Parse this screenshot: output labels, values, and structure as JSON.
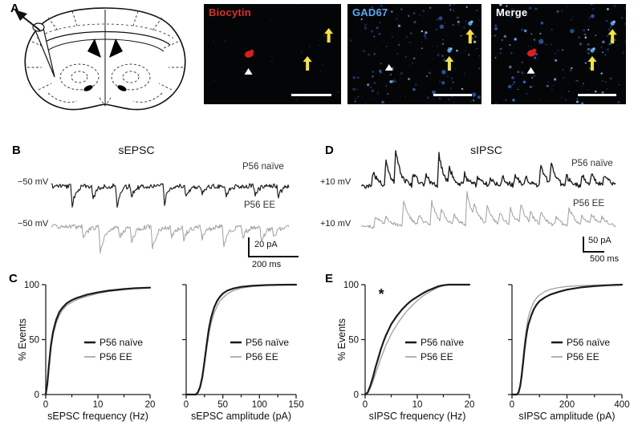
{
  "panels": {
    "a": {
      "label": "A",
      "micrographs": [
        {
          "title": "Biocytin",
          "title_color": "#d93025",
          "speckle": "dim",
          "markers": {
            "red_cell": [
              0.33,
              0.5
            ],
            "white_arrowhead": [
              0.325,
              0.64
            ],
            "yellow_arrows": [
              [
                0.91,
                0.24,
                false
              ],
              [
                0.755,
                0.52,
                false
              ]
            ]
          }
        },
        {
          "title": "GAD67",
          "title_color": "#57aaf0",
          "speckle": "blue",
          "markers": {
            "white_arrowhead": [
              0.31,
              0.6
            ],
            "yellow_arrows": [
              [
                0.915,
                0.25,
                true
              ],
              [
                0.76,
                0.52,
                true
              ]
            ]
          }
        },
        {
          "title": "Merge",
          "title_color": "#ffffff",
          "speckle": "blue",
          "markers": {
            "red_cell": [
              0.3,
              0.49
            ],
            "white_arrowhead": [
              0.295,
              0.63
            ],
            "yellow_arrows": [
              [
                0.9,
                0.25,
                true
              ],
              [
                0.75,
                0.52,
                true
              ]
            ]
          }
        }
      ]
    },
    "b": {
      "label": "B",
      "title": "sEPSC",
      "traces": [
        {
          "hold": "−50 mV",
          "name": "P56 naïve"
        },
        {
          "hold": "−50 mV",
          "name": "P56 EE"
        }
      ],
      "scale_v": "20 pA",
      "scale_h": "200 ms",
      "events": [
        [
          [
            0.08,
            26
          ],
          [
            0.17,
            18
          ],
          [
            0.27,
            25
          ],
          [
            0.33,
            12
          ],
          [
            0.47,
            22
          ],
          [
            0.56,
            14
          ],
          [
            0.63,
            10
          ],
          [
            0.73,
            13
          ],
          [
            0.85,
            12
          ],
          [
            0.95,
            14
          ]
        ],
        [
          [
            0.13,
            16
          ],
          [
            0.2,
            34
          ],
          [
            0.28,
            14
          ],
          [
            0.33,
            18
          ],
          [
            0.42,
            28
          ],
          [
            0.5,
            12
          ],
          [
            0.55,
            16
          ],
          [
            0.63,
            14
          ],
          [
            0.72,
            26
          ],
          [
            0.8,
            12
          ],
          [
            0.88,
            20
          ],
          [
            0.93,
            12
          ]
        ]
      ]
    },
    "c": {
      "label": "C"
    },
    "d": {
      "label": "D",
      "title": "sIPSC",
      "traces": [
        {
          "hold": "+10 mV",
          "name": "P56 naïve"
        },
        {
          "hold": "+10 mV",
          "name": "P56 EE"
        }
      ],
      "scale_v": "50 pA",
      "scale_h": "500 ms",
      "events": [
        [
          [
            0.04,
            18
          ],
          [
            0.09,
            30
          ],
          [
            0.13,
            42
          ],
          [
            0.2,
            16
          ],
          [
            0.25,
            12
          ],
          [
            0.3,
            38
          ],
          [
            0.34,
            20
          ],
          [
            0.4,
            14
          ],
          [
            0.45,
            12
          ],
          [
            0.5,
            10
          ],
          [
            0.55,
            12
          ],
          [
            0.6,
            14
          ],
          [
            0.64,
            10
          ],
          [
            0.7,
            28
          ],
          [
            0.74,
            24
          ],
          [
            0.8,
            12
          ],
          [
            0.86,
            14
          ],
          [
            0.9,
            12
          ],
          [
            0.95,
            14
          ]
        ],
        [
          [
            0.05,
            14
          ],
          [
            0.09,
            10
          ],
          [
            0.16,
            32
          ],
          [
            0.22,
            12
          ],
          [
            0.27,
            30
          ],
          [
            0.31,
            16
          ],
          [
            0.36,
            12
          ],
          [
            0.41,
            40
          ],
          [
            0.44,
            16
          ],
          [
            0.49,
            24
          ],
          [
            0.54,
            14
          ],
          [
            0.58,
            20
          ],
          [
            0.62,
            24
          ],
          [
            0.66,
            12
          ],
          [
            0.7,
            16
          ],
          [
            0.76,
            10
          ],
          [
            0.81,
            22
          ],
          [
            0.86,
            12
          ],
          [
            0.9,
            14
          ],
          [
            0.94,
            10
          ]
        ]
      ]
    },
    "e": {
      "label": "E"
    }
  },
  "colors": {
    "naive": "#1b1b1b",
    "ee": "#9e9e9e",
    "trace_gray": "#a3a3a3",
    "yellow_arrow": "#f6e23c",
    "red_cell": "#dd1f1f",
    "micro_bg": "#040507"
  },
  "chart_data": [
    {
      "id": "sepsc_freq",
      "type": "line",
      "xlabel": "sEPSC frequency (Hz)",
      "ylabel": "% Events",
      "xlim": [
        0,
        20
      ],
      "ylim": [
        0,
        100
      ],
      "xticks": [
        0,
        10,
        20
      ],
      "xminor": [
        5,
        15
      ],
      "yticks": [
        0,
        50,
        100
      ],
      "ytick_labels": true,
      "legend": true,
      "legend_x": 85,
      "series": [
        {
          "name": "P56 naïve",
          "points": [
            [
              0,
              0
            ],
            [
              0.3,
              10
            ],
            [
              0.6,
              26
            ],
            [
              1,
              45
            ],
            [
              1.4,
              57
            ],
            [
              2,
              68
            ],
            [
              2.6,
              75
            ],
            [
              3.2,
              79
            ],
            [
              4,
              83
            ],
            [
              5,
              86
            ],
            [
              6,
              88
            ],
            [
              8,
              91
            ],
            [
              10,
              93
            ],
            [
              12,
              94.5
            ],
            [
              15,
              96
            ],
            [
              17,
              96.7
            ],
            [
              20,
              97.3
            ]
          ]
        },
        {
          "name": "P56 EE",
          "points": [
            [
              0,
              0
            ],
            [
              0.3,
              8
            ],
            [
              0.6,
              23
            ],
            [
              1,
              42
            ],
            [
              1.4,
              54
            ],
            [
              2,
              65
            ],
            [
              2.6,
              72
            ],
            [
              3.2,
              77
            ],
            [
              4,
              81
            ],
            [
              5,
              84
            ],
            [
              6,
              86.5
            ],
            [
              8,
              89.5
            ],
            [
              10,
              92
            ],
            [
              12,
              93.8
            ],
            [
              15,
              95.5
            ],
            [
              17,
              96.4
            ],
            [
              20,
              97.2
            ]
          ]
        }
      ]
    },
    {
      "id": "sepsc_amp",
      "type": "line",
      "xlabel": "sEPSC amplitude (pA)",
      "ylabel": "",
      "xlim": [
        0,
        150
      ],
      "ylim": [
        0,
        100
      ],
      "xticks": [
        0,
        50,
        100,
        150
      ],
      "xminor": [
        25,
        75,
        125
      ],
      "yticks": [
        0,
        50,
        100
      ],
      "ytick_labels": false,
      "legend": true,
      "legend_x": 92,
      "series": [
        {
          "name": "P56 naïve",
          "points": [
            [
              0,
              0
            ],
            [
              13,
              0
            ],
            [
              16,
              2
            ],
            [
              19,
              7
            ],
            [
              22,
              16
            ],
            [
              25,
              30
            ],
            [
              28,
              46
            ],
            [
              31,
              60
            ],
            [
              34,
              70
            ],
            [
              38,
              79
            ],
            [
              42,
              85
            ],
            [
              46,
              89
            ],
            [
              50,
              92
            ],
            [
              56,
              94.5
            ],
            [
              64,
              96.5
            ],
            [
              75,
              98
            ],
            [
              90,
              99
            ],
            [
              110,
              99.6
            ],
            [
              130,
              99.9
            ],
            [
              150,
              100
            ]
          ]
        },
        {
          "name": "P56 EE",
          "points": [
            [
              0,
              0
            ],
            [
              13,
              0
            ],
            [
              16,
              2
            ],
            [
              19,
              6
            ],
            [
              22,
              14
            ],
            [
              25,
              27
            ],
            [
              28,
              42
            ],
            [
              31,
              55
            ],
            [
              34,
              65
            ],
            [
              38,
              74
            ],
            [
              42,
              80
            ],
            [
              46,
              85
            ],
            [
              50,
              88
            ],
            [
              56,
              91.5
            ],
            [
              64,
              94.5
            ],
            [
              75,
              96.8
            ],
            [
              90,
              98.4
            ],
            [
              110,
              99.4
            ],
            [
              130,
              99.8
            ],
            [
              150,
              100
            ]
          ]
        }
      ]
    },
    {
      "id": "sipsc_freq",
      "type": "line",
      "xlabel": "sIPSC frequency (Hz)",
      "ylabel": "% Events",
      "xlim": [
        0,
        20
      ],
      "ylim": [
        0,
        100
      ],
      "xticks": [
        0,
        10,
        20
      ],
      "xminor": [
        5,
        15
      ],
      "yticks": [
        0,
        50,
        100
      ],
      "ytick_labels": true,
      "legend": true,
      "legend_x": 87,
      "annotation": {
        "text": "*",
        "x": 3.1,
        "y": 87
      },
      "series": [
        {
          "name": "P56 naïve",
          "points": [
            [
              0,
              0
            ],
            [
              0.5,
              2
            ],
            [
              1,
              8
            ],
            [
              1.5,
              16
            ],
            [
              2,
              25
            ],
            [
              2.5,
              33
            ],
            [
              3,
              41
            ],
            [
              3.5,
              48
            ],
            [
              4,
              54
            ],
            [
              4.5,
              59
            ],
            [
              5,
              64
            ],
            [
              6,
              71
            ],
            [
              7,
              77
            ],
            [
              8,
              82
            ],
            [
              9,
              86
            ],
            [
              10,
              89
            ],
            [
              11,
              92
            ],
            [
              12,
              94.5
            ],
            [
              13,
              96.5
            ],
            [
              14,
              98.5
            ],
            [
              15,
              99.5
            ],
            [
              16,
              100
            ],
            [
              20,
              100
            ]
          ]
        },
        {
          "name": "P56 EE",
          "points": [
            [
              0,
              0
            ],
            [
              0.5,
              1.5
            ],
            [
              1,
              6
            ],
            [
              1.5,
              12
            ],
            [
              2,
              19
            ],
            [
              2.5,
              26
            ],
            [
              3,
              33
            ],
            [
              3.5,
              39
            ],
            [
              4,
              45
            ],
            [
              4.5,
              50
            ],
            [
              5,
              55
            ],
            [
              6,
              63
            ],
            [
              7,
              70
            ],
            [
              8,
              76
            ],
            [
              9,
              81
            ],
            [
              10,
              85.5
            ],
            [
              11,
              89.5
            ],
            [
              12,
              92.5
            ],
            [
              13,
              95
            ],
            [
              14,
              97.5
            ],
            [
              15,
              99
            ],
            [
              16,
              100
            ],
            [
              20,
              100
            ]
          ]
        }
      ]
    },
    {
      "id": "sipsc_amp",
      "type": "line",
      "xlabel": "sIPSC amplitude (pA)",
      "ylabel": "",
      "xlim": [
        0,
        400
      ],
      "ylim": [
        0,
        100
      ],
      "xticks": [
        0,
        200,
        400
      ],
      "xminor": [
        100,
        300
      ],
      "yticks": [
        0,
        50,
        100
      ],
      "ytick_labels": false,
      "legend": true,
      "legend_x": 86,
      "series": [
        {
          "name": "P56 naïve",
          "points": [
            [
              0,
              0
            ],
            [
              18,
              0
            ],
            [
              24,
              2
            ],
            [
              30,
              8
            ],
            [
              35,
              17
            ],
            [
              40,
              28
            ],
            [
              45,
              40
            ],
            [
              50,
              50
            ],
            [
              55,
              58
            ],
            [
              60,
              64
            ],
            [
              70,
              72
            ],
            [
              80,
              78
            ],
            [
              90,
              82
            ],
            [
              100,
              85
            ],
            [
              120,
              88.5
            ],
            [
              140,
              91
            ],
            [
              170,
              93.5
            ],
            [
              200,
              95.5
            ],
            [
              250,
              97.5
            ],
            [
              300,
              98.7
            ],
            [
              350,
              99.5
            ],
            [
              400,
              100
            ]
          ]
        },
        {
          "name": "P56 EE",
          "points": [
            [
              0,
              0
            ],
            [
              18,
              0
            ],
            [
              24,
              2
            ],
            [
              30,
              9
            ],
            [
              35,
              19
            ],
            [
              40,
              32
            ],
            [
              45,
              45
            ],
            [
              50,
              56
            ],
            [
              55,
              64
            ],
            [
              60,
              71
            ],
            [
              70,
              79
            ],
            [
              80,
              84.5
            ],
            [
              90,
              88
            ],
            [
              100,
              90.5
            ],
            [
              120,
              93.8
            ],
            [
              140,
              95.8
            ],
            [
              170,
              97.4
            ],
            [
              200,
              98.4
            ],
            [
              250,
              99.2
            ],
            [
              300,
              99.6
            ],
            [
              350,
              99.9
            ],
            [
              400,
              100
            ]
          ]
        }
      ]
    }
  ]
}
